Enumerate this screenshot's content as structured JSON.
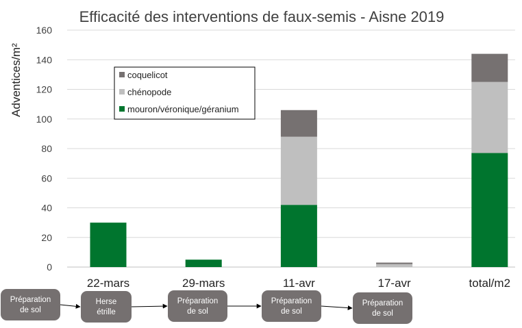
{
  "chart_data": {
    "type": "bar",
    "stacked": true,
    "title": "Efficacité des interventions de faux-semis - Aisne 2019",
    "xlabel": "",
    "ylabel": "Adventices/m²",
    "ylim": [
      0,
      160
    ],
    "yticks": [
      0,
      20,
      40,
      60,
      80,
      100,
      120,
      140,
      160
    ],
    "grid": true,
    "legend_position": "top-left",
    "categories": [
      "22-mars",
      "29-mars",
      "11-avr",
      "17-avr",
      "total/m2"
    ],
    "series": [
      {
        "name": "mouron/véronique/géranium",
        "color": "#00752e",
        "values": [
          30,
          5,
          42,
          0,
          77
        ]
      },
      {
        "name": "chénopode",
        "color": "#bfbfbf",
        "values": [
          0,
          0,
          46,
          2,
          48
        ]
      },
      {
        "name": "coquelicot",
        "color": "#767171",
        "values": [
          0,
          0,
          18,
          1,
          19
        ]
      }
    ],
    "legend_order": [
      "coquelicot",
      "chénopode",
      "mouron/véronique/géranium"
    ]
  },
  "interventions": [
    "Préparation de sol",
    "Herse étrille",
    "Préparation de sol",
    "Préparation de sol",
    "Préparation de sol"
  ]
}
